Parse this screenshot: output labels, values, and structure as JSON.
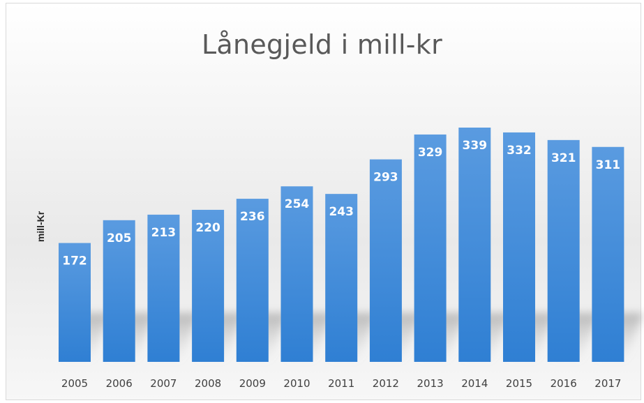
{
  "chart_data": {
    "type": "bar",
    "title": "Lånegjeld i mill-kr",
    "ylabel": "mill-Kr",
    "xlabel": "",
    "categories": [
      "2005",
      "2006",
      "2007",
      "2008",
      "2009",
      "2010",
      "2011",
      "2012",
      "2013",
      "2014",
      "2015",
      "2016",
      "2017"
    ],
    "values": [
      172,
      205,
      213,
      220,
      236,
      254,
      243,
      293,
      329,
      339,
      332,
      321,
      311
    ],
    "ylim": [
      0,
      350
    ],
    "data_labels": "inside-top",
    "grid": false,
    "legend": "none",
    "bar_color": "#3b86d6"
  }
}
